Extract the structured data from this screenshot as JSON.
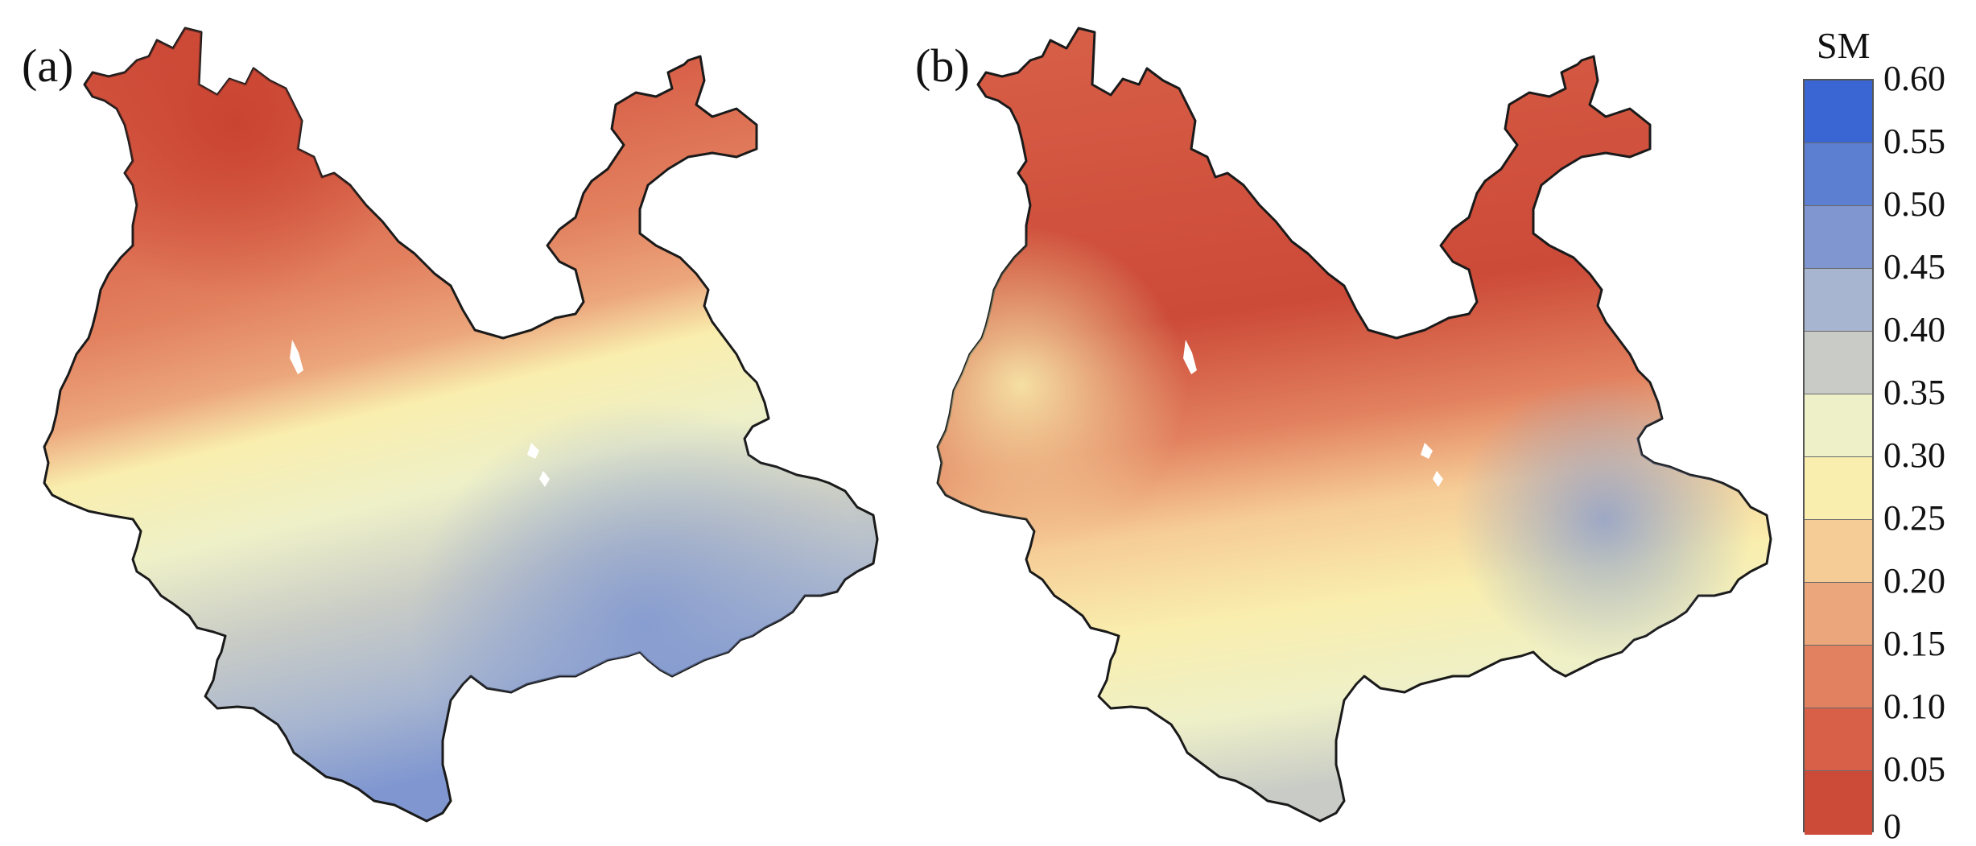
{
  "panels": [
    {
      "id": "a",
      "label": "(a)"
    },
    {
      "id": "b",
      "label": "(b)"
    }
  ],
  "legend": {
    "title": "SM",
    "ticks": [
      "0.60",
      "0.55",
      "0.50",
      "0.45",
      "0.40",
      "0.35",
      "0.30",
      "0.25",
      "0.20",
      "0.15",
      "0.10",
      "0.05",
      "0"
    ],
    "colors": [
      "#3a66d4",
      "#5c7fd2",
      "#7f96d0",
      "#a7b5d0",
      "#c9ccc6",
      "#eef0c8",
      "#f9eeae",
      "#f6cc96",
      "#eca67c",
      "#e2815f",
      "#d86048",
      "#cc4a38"
    ]
  }
}
